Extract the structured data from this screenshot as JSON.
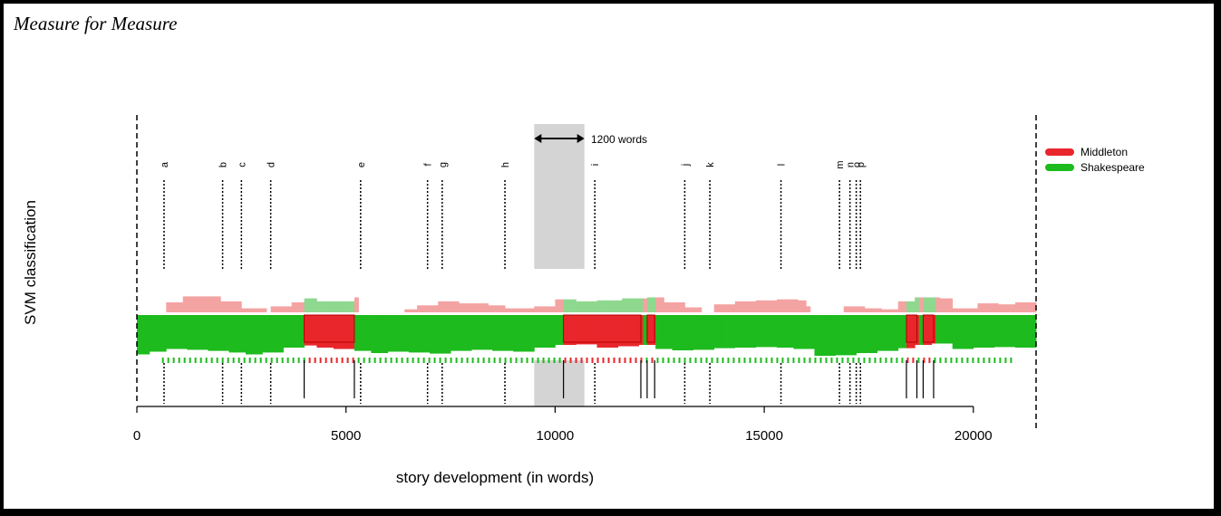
{
  "title": "Measure for Measure",
  "chart_data": {
    "type": "area",
    "xlabel": "story development (in words)",
    "ylabel": "SVM classification",
    "xlim": [
      0,
      21500
    ],
    "x_ticks": [
      0,
      5000,
      10000,
      15000,
      20000
    ],
    "grid": false,
    "legend_position": "top-right",
    "series": [
      {
        "name": "Middleton",
        "color": "#e8262b"
      },
      {
        "name": "Shakespeare",
        "color": "#1dbb1d"
      }
    ],
    "window_annotation": {
      "label": "1200 words",
      "x_start": 9500,
      "x_end": 10700
    },
    "scene_markers": [
      {
        "label": "a",
        "x": 650
      },
      {
        "label": "b",
        "x": 2050
      },
      {
        "label": "c",
        "x": 2500
      },
      {
        "label": "d",
        "x": 3200
      },
      {
        "label": "e",
        "x": 5350
      },
      {
        "label": "f",
        "x": 6950
      },
      {
        "label": "g",
        "x": 7300
      },
      {
        "label": "h",
        "x": 8800
      },
      {
        "label": "i",
        "x": 10950
      },
      {
        "label": "j",
        "x": 13100
      },
      {
        "label": "k",
        "x": 13700
      },
      {
        "label": "l",
        "x": 15400
      },
      {
        "label": "m",
        "x": 16800
      },
      {
        "label": "n",
        "x": 17050
      },
      {
        "label": "o",
        "x": 17200
      },
      {
        "label": "p",
        "x": 17300
      }
    ],
    "classification_segments": [
      {
        "start": 0,
        "end": 4000,
        "label": "Shakespeare"
      },
      {
        "start": 4000,
        "end": 5200,
        "label": "Middleton"
      },
      {
        "start": 5200,
        "end": 10200,
        "label": "Shakespeare"
      },
      {
        "start": 10200,
        "end": 12050,
        "label": "Middleton"
      },
      {
        "start": 12050,
        "end": 12200,
        "label": "Shakespeare"
      },
      {
        "start": 12200,
        "end": 12380,
        "label": "Middleton"
      },
      {
        "start": 12380,
        "end": 18400,
        "label": "Shakespeare"
      },
      {
        "start": 18400,
        "end": 18650,
        "label": "Middleton"
      },
      {
        "start": 18650,
        "end": 18800,
        "label": "Shakespeare"
      },
      {
        "start": 18800,
        "end": 19050,
        "label": "Middleton"
      },
      {
        "start": 19050,
        "end": 21500,
        "label": "Shakespeare"
      }
    ],
    "main_area_points": [
      [
        0,
        0.95
      ],
      [
        300,
        0.85
      ],
      [
        700,
        0.75
      ],
      [
        1200,
        0.78
      ],
      [
        1700,
        0.82
      ],
      [
        2200,
        0.88
      ],
      [
        2600,
        0.95
      ],
      [
        3000,
        0.88
      ],
      [
        3500,
        0.7
      ],
      [
        4000,
        0.62
      ],
      [
        4300,
        0.7
      ],
      [
        4700,
        0.75
      ],
      [
        5200,
        0.82
      ],
      [
        5600,
        0.9
      ],
      [
        6000,
        0.85
      ],
      [
        6500,
        0.88
      ],
      [
        7000,
        0.92
      ],
      [
        7500,
        0.82
      ],
      [
        8000,
        0.78
      ],
      [
        8500,
        0.82
      ],
      [
        9000,
        0.85
      ],
      [
        9500,
        0.7
      ],
      [
        10000,
        0.6
      ],
      [
        10500,
        0.58
      ],
      [
        11000,
        0.7
      ],
      [
        11500,
        0.65
      ],
      [
        12000,
        0.6
      ],
      [
        12400,
        0.75
      ],
      [
        12800,
        0.8
      ],
      [
        13300,
        0.78
      ],
      [
        13800,
        0.72
      ],
      [
        14300,
        0.7
      ],
      [
        14800,
        0.68
      ],
      [
        15300,
        0.7
      ],
      [
        15700,
        0.75
      ],
      [
        16200,
        1.0
      ],
      [
        16700,
        0.98
      ],
      [
        17200,
        0.9
      ],
      [
        17700,
        0.82
      ],
      [
        18200,
        0.72
      ],
      [
        18600,
        0.6
      ],
      [
        19000,
        0.55
      ],
      [
        19500,
        0.75
      ],
      [
        20000,
        0.7
      ],
      [
        20500,
        0.68
      ],
      [
        21000,
        0.7
      ],
      [
        21500,
        0.72
      ]
    ],
    "top_area_points": [
      [
        600,
        0.0
      ],
      [
        700,
        0.5
      ],
      [
        1100,
        0.8
      ],
      [
        1700,
        0.8
      ],
      [
        2000,
        0.55
      ],
      [
        2500,
        0.2
      ],
      [
        3100,
        0.0
      ],
      [
        3200,
        0.3
      ],
      [
        3700,
        0.5
      ],
      [
        4000,
        0.7
      ],
      [
        4300,
        0.55
      ],
      [
        4800,
        0.55
      ],
      [
        5200,
        0.75
      ],
      [
        5250,
        0.0
      ],
      [
        6400,
        0.15
      ],
      [
        6700,
        0.35
      ],
      [
        7200,
        0.55
      ],
      [
        7700,
        0.45
      ],
      [
        8400,
        0.35
      ],
      [
        8800,
        0.2
      ],
      [
        9500,
        0.3
      ],
      [
        10000,
        0.65
      ],
      [
        10500,
        0.55
      ],
      [
        11000,
        0.6
      ],
      [
        11600,
        0.7
      ],
      [
        12200,
        0.75
      ],
      [
        12600,
        0.5
      ],
      [
        13100,
        0.25
      ],
      [
        13500,
        0.0
      ],
      [
        13800,
        0.4
      ],
      [
        14300,
        0.55
      ],
      [
        14800,
        0.6
      ],
      [
        15300,
        0.65
      ],
      [
        15800,
        0.6
      ],
      [
        16000,
        0.3
      ],
      [
        16100,
        0.0
      ],
      [
        16900,
        0.3
      ],
      [
        17400,
        0.2
      ],
      [
        17800,
        0.15
      ],
      [
        18200,
        0.55
      ],
      [
        18600,
        0.75
      ],
      [
        19200,
        0.7
      ],
      [
        19500,
        0.2
      ],
      [
        20100,
        0.45
      ],
      [
        20600,
        0.4
      ],
      [
        21000,
        0.5
      ],
      [
        21500,
        0.5
      ]
    ],
    "classification_lines": [
      4000,
      5200,
      10200,
      12050,
      12200,
      12380,
      18400,
      18650,
      18800,
      19050
    ]
  }
}
